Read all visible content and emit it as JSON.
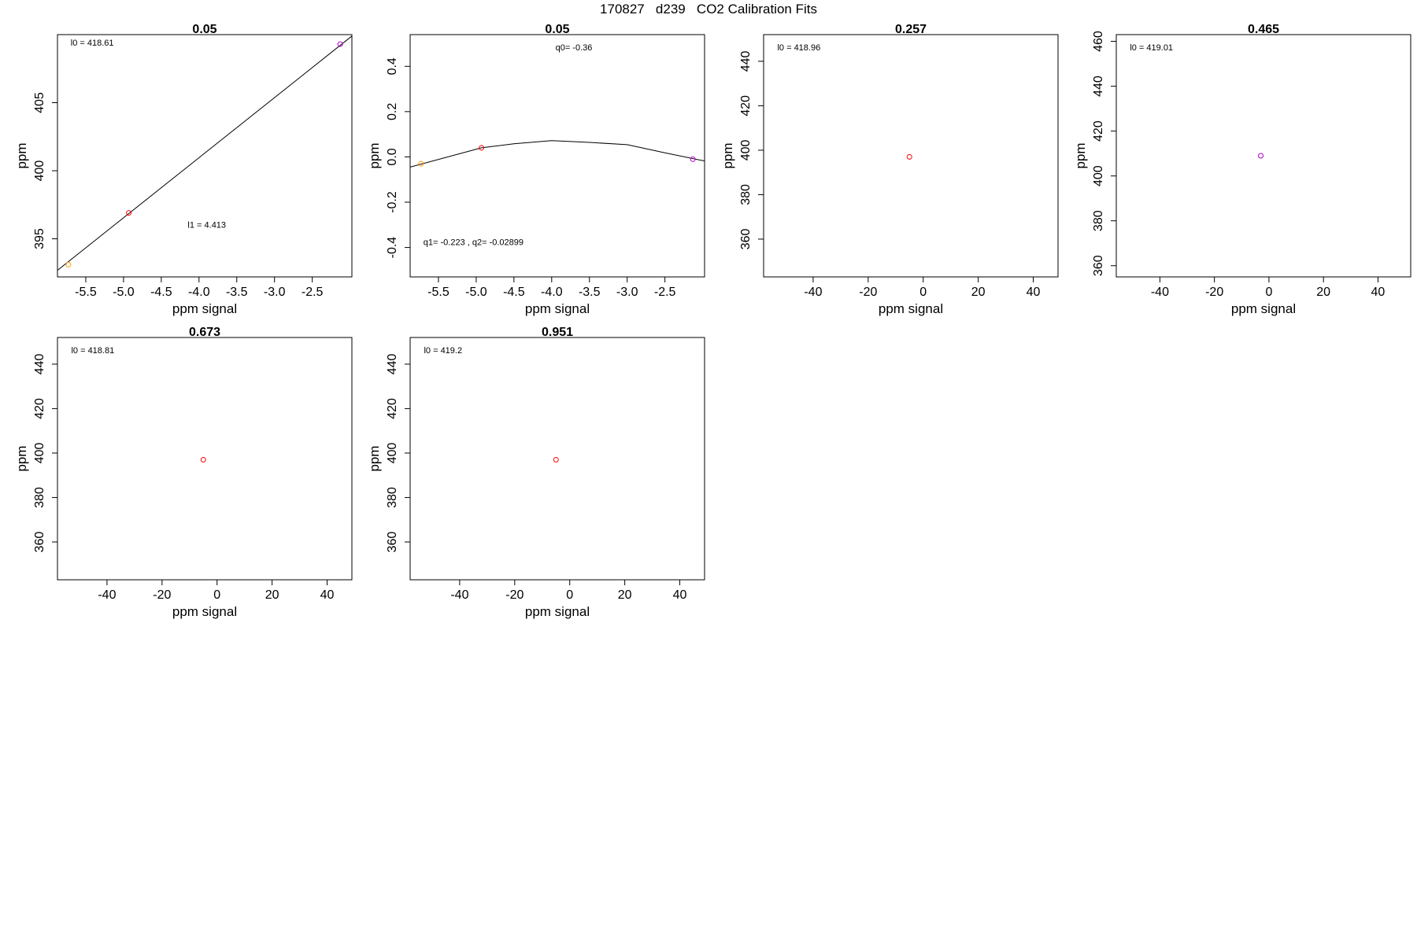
{
  "figure": {
    "title": "170827   d239   CO2 Calibration Fits"
  },
  "colors": {
    "orange": "#ff9900",
    "red": "#ff0000",
    "purple": "#b000c8",
    "axis": "#000000",
    "fit_line": "#000000"
  },
  "chart_data": [
    {
      "type": "scatter",
      "title": "0.05",
      "xlabel": "ppm signal",
      "ylabel": "ppm",
      "xlim": [
        -5.875,
        -1.975
      ],
      "ylim": [
        392.2,
        410.0
      ],
      "xticks": [
        -5.5,
        -5.0,
        -4.5,
        -4.0,
        -3.5,
        -3.0,
        -2.5
      ],
      "xtick_labels": [
        "-5.5",
        "-5.0",
        "-4.5",
        "-4.0",
        "-3.5",
        "-3.0",
        "-2.5"
      ],
      "yticks": [
        395,
        400,
        405
      ],
      "ytick_labels": [
        "395",
        "400",
        "405"
      ],
      "points": [
        {
          "x": -5.73,
          "y": 393.1,
          "color": "#ff9900"
        },
        {
          "x": -4.93,
          "y": 396.9,
          "color": "#ff0000"
        },
        {
          "x": -2.13,
          "y": 409.3,
          "color": "#b000c8"
        }
      ],
      "fit": {
        "kind": "linear",
        "intercept": 418.61,
        "slope": 4.413
      },
      "annotations": [
        {
          "text": "l0 =  418.61",
          "x": -5.7,
          "y": 409.2
        },
        {
          "text": "l1 =  4.413",
          "x": -4.15,
          "y": 395.8
        }
      ]
    },
    {
      "type": "scatter",
      "title": "0.05",
      "xlabel": "ppm signal",
      "ylabel": "ppm",
      "xlim": [
        -5.875,
        -1.975
      ],
      "ylim": [
        -0.53,
        0.54
      ],
      "xticks": [
        -5.5,
        -5.0,
        -4.5,
        -4.0,
        -3.5,
        -3.0,
        -2.5
      ],
      "xtick_labels": [
        "-5.5",
        "-5.0",
        "-4.5",
        "-4.0",
        "-3.5",
        "-3.0",
        "-2.5"
      ],
      "yticks": [
        -0.4,
        -0.2,
        0.0,
        0.2,
        0.4
      ],
      "ytick_labels": [
        "-0.4",
        "-0.2",
        "0.0",
        "0.2",
        "0.4"
      ],
      "points": [
        {
          "x": -5.73,
          "y": -0.03,
          "color": "#ff9900"
        },
        {
          "x": -4.93,
          "y": 0.04,
          "color": "#ff0000"
        },
        {
          "x": -2.13,
          "y": -0.01,
          "color": "#b000c8"
        }
      ],
      "fit_line": {
        "x": [
          -5.875,
          -4.93,
          -4.5,
          -4.0,
          -3.5,
          -3.0,
          -2.5,
          -1.975
        ],
        "y": [
          -0.045,
          0.04,
          0.058,
          0.072,
          0.064,
          0.054,
          0.018,
          -0.018
        ]
      },
      "annotations": [
        {
          "text": "q0= -0.36",
          "x": -3.95,
          "y": 0.47
        },
        {
          "text": "q1= -0.223 , q2= -0.02899",
          "x": -5.7,
          "y": -0.39
        }
      ]
    },
    {
      "type": "scatter",
      "title": "0.257",
      "xlabel": "ppm signal",
      "ylabel": "ppm",
      "xlim": [
        -58,
        49
      ],
      "ylim": [
        343,
        452
      ],
      "xticks": [
        -40,
        -20,
        0,
        20,
        40
      ],
      "xtick_labels": [
        "-40",
        "-20",
        "0",
        "20",
        "40"
      ],
      "yticks": [
        360,
        380,
        400,
        420,
        440
      ],
      "ytick_labels": [
        "360",
        "380",
        "400",
        "420",
        "440"
      ],
      "points": [
        {
          "x": -5,
          "y": 397,
          "color": "#ff0000"
        }
      ],
      "annotations": [
        {
          "text": "l0 =  418.96",
          "x": -53,
          "y": 445
        }
      ]
    },
    {
      "type": "scatter",
      "title": "0.465",
      "xlabel": "ppm signal",
      "ylabel": "ppm",
      "xlim": [
        -56,
        52
      ],
      "ylim": [
        355,
        463
      ],
      "xticks": [
        -40,
        -20,
        0,
        20,
        40
      ],
      "xtick_labels": [
        "-40",
        "-20",
        "0",
        "20",
        "40"
      ],
      "yticks": [
        360,
        380,
        400,
        420,
        440,
        460
      ],
      "ytick_labels": [
        "360",
        "380",
        "400",
        "420",
        "440",
        "460"
      ],
      "points": [
        {
          "x": -3,
          "y": 409,
          "color": "#b000c8"
        }
      ],
      "annotations": [
        {
          "text": "l0 =  419.01",
          "x": -51,
          "y": 456
        }
      ]
    },
    {
      "type": "scatter",
      "title": "0.673",
      "xlabel": "ppm signal",
      "ylabel": "ppm",
      "xlim": [
        -58,
        49
      ],
      "ylim": [
        343,
        452
      ],
      "xticks": [
        -40,
        -20,
        0,
        20,
        40
      ],
      "xtick_labels": [
        "-40",
        "-20",
        "0",
        "20",
        "40"
      ],
      "yticks": [
        360,
        380,
        400,
        420,
        440
      ],
      "ytick_labels": [
        "360",
        "380",
        "400",
        "420",
        "440"
      ],
      "points": [
        {
          "x": -5,
          "y": 397,
          "color": "#ff0000"
        }
      ],
      "annotations": [
        {
          "text": "l0 =  418.81",
          "x": -53,
          "y": 445
        }
      ]
    },
    {
      "type": "scatter",
      "title": "0.951",
      "xlabel": "ppm signal",
      "ylabel": "ppm",
      "xlim": [
        -58,
        49
      ],
      "ylim": [
        343,
        452
      ],
      "xticks": [
        -40,
        -20,
        0,
        20,
        40
      ],
      "xtick_labels": [
        "-40",
        "-20",
        "0",
        "20",
        "40"
      ],
      "yticks": [
        360,
        380,
        400,
        420,
        440
      ],
      "ytick_labels": [
        "360",
        "380",
        "400",
        "420",
        "440"
      ],
      "points": [
        {
          "x": -5,
          "y": 397,
          "color": "#ff0000"
        }
      ],
      "annotations": [
        {
          "text": "l0 =  419.2",
          "x": -53,
          "y": 445
        }
      ]
    }
  ]
}
